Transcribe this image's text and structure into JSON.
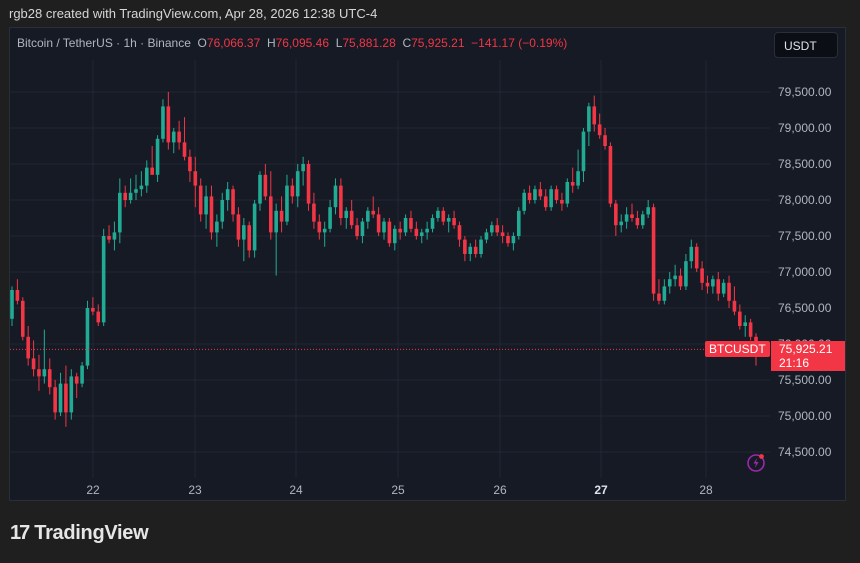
{
  "credit": "rgb28 created with TradingView.com, Apr 28, 2026 12:38 UTC-4",
  "legend": {
    "symbol": "Bitcoin / TetherUS · 1h · Binance",
    "o_label": "O",
    "o": "76,066.37",
    "h_label": "H",
    "h": "76,095.46",
    "l_label": "L",
    "l": "75,881.28",
    "c_label": "C",
    "c": "75,925.21",
    "change": "−141.17 (−0.19%)"
  },
  "currency_button": "USDT",
  "price_tag": {
    "symbol": "BTCUSDT",
    "price": "75,925.21",
    "countdown": "21:16"
  },
  "logo": {
    "mark": "17",
    "word": "TradingView"
  },
  "colors": {
    "up": "#22ab94",
    "down": "#f23645",
    "bg": "#161a25",
    "grid": "#232734",
    "accent_icon": "#9c27b0"
  },
  "chart_data": {
    "type": "candlestick",
    "title": "Bitcoin / TetherUS · 1h · Binance",
    "xlabel": "",
    "ylabel": "USDT",
    "x_ticks": [
      "22",
      "23",
      "24",
      "25",
      "26",
      "27",
      "28"
    ],
    "x_tick_bold": "27",
    "y_ticks": [
      79500,
      79000,
      78500,
      78000,
      77500,
      77000,
      76500,
      76000,
      75500,
      75000,
      74500
    ],
    "y_tick_labels": [
      "79,500.00",
      "79,000.00",
      "78,500.00",
      "78,000.00",
      "77,500.00",
      "77,000.00",
      "76,500.00",
      "76,000.00",
      "75,500.00",
      "75,000.00",
      "74,500.00"
    ],
    "ylim": [
      74250,
      79950
    ],
    "last_price": 75925.21,
    "grid": true,
    "candles_ohlc": [
      [
        76350,
        76800,
        76250,
        76750
      ],
      [
        76750,
        76900,
        76550,
        76600
      ],
      [
        76600,
        76650,
        76050,
        76100
      ],
      [
        76100,
        76250,
        75700,
        75800
      ],
      [
        75800,
        76050,
        75550,
        75650
      ],
      [
        75650,
        75850,
        75350,
        75550
      ],
      [
        75550,
        76200,
        75450,
        75650
      ],
      [
        75650,
        75800,
        75300,
        75400
      ],
      [
        75400,
        75500,
        74950,
        75050
      ],
      [
        75050,
        75600,
        75000,
        75450
      ],
      [
        75450,
        75700,
        74850,
        75050
      ],
      [
        75050,
        75650,
        74950,
        75550
      ],
      [
        75550,
        75600,
        75250,
        75450
      ],
      [
        75450,
        75750,
        75400,
        75700
      ],
      [
        75700,
        76600,
        75650,
        76500
      ],
      [
        76500,
        76650,
        76400,
        76450
      ],
      [
        76450,
        76550,
        76250,
        76300
      ],
      [
        76300,
        77600,
        76250,
        77500
      ],
      [
        77500,
        77650,
        77400,
        77450
      ],
      [
        77450,
        77700,
        77300,
        77550
      ],
      [
        77550,
        78300,
        77400,
        78100
      ],
      [
        78100,
        78200,
        77900,
        78000
      ],
      [
        78000,
        78300,
        77950,
        78100
      ],
      [
        78100,
        78350,
        78000,
        78150
      ],
      [
        78150,
        78400,
        78050,
        78200
      ],
      [
        78200,
        78550,
        78100,
        78450
      ],
      [
        78450,
        78750,
        78350,
        78350
      ],
      [
        78350,
        78900,
        78250,
        78850
      ],
      [
        78850,
        79400,
        78800,
        79300
      ],
      [
        79300,
        79500,
        78700,
        78800
      ],
      [
        78800,
        79000,
        78650,
        78950
      ],
      [
        78950,
        79100,
        78700,
        78800
      ],
      [
        78800,
        79150,
        78550,
        78600
      ],
      [
        78600,
        78700,
        78250,
        78400
      ],
      [
        78400,
        78600,
        77900,
        78200
      ],
      [
        78200,
        78300,
        77700,
        77800
      ],
      [
        77800,
        78200,
        77600,
        78050
      ],
      [
        78050,
        78200,
        77450,
        77550
      ],
      [
        77550,
        77800,
        77350,
        77700
      ],
      [
        77700,
        78100,
        77600,
        78000
      ],
      [
        78000,
        78250,
        77850,
        78150
      ],
      [
        78150,
        78200,
        77700,
        77800
      ],
      [
        77800,
        77900,
        77350,
        77450
      ],
      [
        77450,
        77750,
        77150,
        77650
      ],
      [
        77650,
        77700,
        77200,
        77300
      ],
      [
        77300,
        78000,
        77200,
        77950
      ],
      [
        77950,
        78400,
        77850,
        78350
      ],
      [
        78350,
        78500,
        78000,
        78050
      ],
      [
        78050,
        78400,
        77450,
        77550
      ],
      [
        77550,
        77950,
        76950,
        77850
      ],
      [
        77850,
        78050,
        77550,
        77700
      ],
      [
        77700,
        78350,
        77650,
        78200
      ],
      [
        78200,
        78300,
        77950,
        78050
      ],
      [
        78050,
        78500,
        77900,
        78400
      ],
      [
        78400,
        78600,
        78200,
        78500
      ],
      [
        78500,
        78550,
        77850,
        77950
      ],
      [
        77950,
        78100,
        77600,
        77700
      ],
      [
        77700,
        77800,
        77450,
        77550
      ],
      [
        77550,
        77700,
        77350,
        77600
      ],
      [
        77600,
        78000,
        77550,
        77900
      ],
      [
        77900,
        78300,
        77800,
        78200
      ],
      [
        78200,
        78300,
        77650,
        77750
      ],
      [
        77750,
        77900,
        77600,
        77850
      ],
      [
        77850,
        78000,
        77600,
        77650
      ],
      [
        77650,
        77750,
        77450,
        77500
      ],
      [
        77500,
        77750,
        77400,
        77700
      ],
      [
        77700,
        77900,
        77600,
        77850
      ],
      [
        77850,
        78050,
        77750,
        77800
      ],
      [
        77800,
        77900,
        77500,
        77550
      ],
      [
        77550,
        77750,
        77450,
        77700
      ],
      [
        77700,
        77750,
        77350,
        77400
      ],
      [
        77400,
        77650,
        77300,
        77600
      ],
      [
        77600,
        77700,
        77450,
        77550
      ],
      [
        77550,
        77800,
        77500,
        77750
      ],
      [
        77750,
        77850,
        77550,
        77600
      ],
      [
        77600,
        77700,
        77450,
        77500
      ],
      [
        77500,
        77600,
        77400,
        77550
      ],
      [
        77550,
        77700,
        77450,
        77600
      ],
      [
        77600,
        77800,
        77550,
        77750
      ],
      [
        77750,
        77900,
        77700,
        77850
      ],
      [
        77850,
        77900,
        77650,
        77700
      ],
      [
        77700,
        77800,
        77550,
        77750
      ],
      [
        77750,
        77850,
        77600,
        77650
      ],
      [
        77650,
        77700,
        77350,
        77450
      ],
      [
        77450,
        77500,
        77150,
        77250
      ],
      [
        77250,
        77400,
        77150,
        77350
      ],
      [
        77350,
        77450,
        77200,
        77250
      ],
      [
        77250,
        77500,
        77200,
        77450
      ],
      [
        77450,
        77600,
        77400,
        77550
      ],
      [
        77550,
        77700,
        77500,
        77650
      ],
      [
        77650,
        77750,
        77500,
        77550
      ],
      [
        77550,
        77650,
        77400,
        77500
      ],
      [
        77500,
        77550,
        77350,
        77400
      ],
      [
        77400,
        77550,
        77300,
        77500
      ],
      [
        77500,
        77900,
        77450,
        77850
      ],
      [
        77850,
        78150,
        77800,
        78100
      ],
      [
        78100,
        78200,
        77950,
        78000
      ],
      [
        78000,
        78200,
        77950,
        78150
      ],
      [
        78150,
        78250,
        78000,
        78050
      ],
      [
        78050,
        78150,
        77850,
        77900
      ],
      [
        77900,
        78200,
        77850,
        78150
      ],
      [
        78150,
        78200,
        77950,
        78000
      ],
      [
        78000,
        78100,
        77850,
        77950
      ],
      [
        77950,
        78300,
        77900,
        78250
      ],
      [
        78250,
        78450,
        78100,
        78200
      ],
      [
        78200,
        78700,
        78150,
        78400
      ],
      [
        78400,
        79000,
        78250,
        78950
      ],
      [
        78950,
        79350,
        78750,
        79300
      ],
      [
        79300,
        79450,
        78950,
        79050
      ],
      [
        79050,
        79200,
        78850,
        78900
      ],
      [
        78900,
        79000,
        78700,
        78750
      ],
      [
        78750,
        78800,
        77900,
        77950
      ],
      [
        77950,
        78000,
        77500,
        77650
      ],
      [
        77650,
        77800,
        77550,
        77700
      ],
      [
        77700,
        77900,
        77600,
        77800
      ],
      [
        77800,
        77950,
        77700,
        77750
      ],
      [
        77750,
        77850,
        77600,
        77650
      ],
      [
        77650,
        77850,
        77600,
        77800
      ],
      [
        77800,
        78000,
        77750,
        77900
      ],
      [
        77900,
        77950,
        76600,
        76700
      ],
      [
        76700,
        76900,
        76550,
        76600
      ],
      [
        76600,
        76900,
        76550,
        76800
      ],
      [
        76800,
        77000,
        76700,
        76900
      ],
      [
        76900,
        77100,
        76800,
        76950
      ],
      [
        76950,
        77050,
        76750,
        76800
      ],
      [
        76800,
        77250,
        76750,
        77150
      ],
      [
        77150,
        77450,
        77050,
        77350
      ],
      [
        77350,
        77400,
        77000,
        77050
      ],
      [
        77050,
        77150,
        76750,
        76850
      ],
      [
        76850,
        76950,
        76700,
        76800
      ],
      [
        76800,
        76950,
        76700,
        76900
      ],
      [
        76900,
        77000,
        76600,
        76700
      ],
      [
        76700,
        76900,
        76650,
        76850
      ],
      [
        76850,
        76950,
        76500,
        76600
      ],
      [
        76600,
        76800,
        76400,
        76450
      ],
      [
        76450,
        76550,
        76200,
        76250
      ],
      [
        76250,
        76400,
        76100,
        76300
      ],
      [
        76300,
        76350,
        76050,
        76100
      ],
      [
        76100,
        76150,
        75700,
        75930
      ]
    ]
  }
}
